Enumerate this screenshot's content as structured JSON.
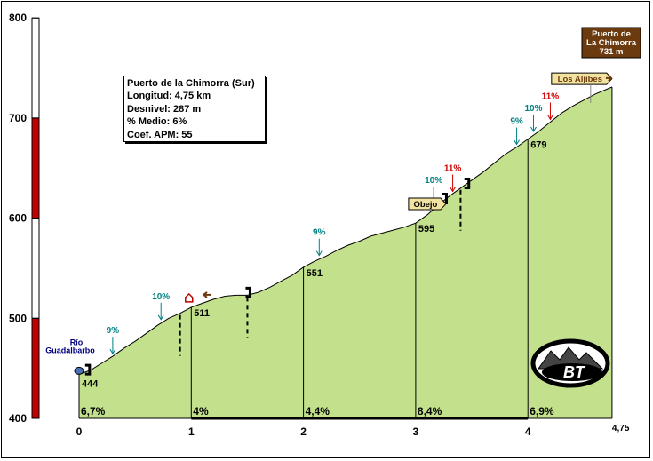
{
  "chart_data": {
    "type": "area",
    "title": "Puerto de la Chimorra (Sur)",
    "ylim": [
      400,
      800
    ],
    "xlim": [
      0,
      4.75
    ],
    "yticks": [
      "400",
      "500",
      "600",
      "700",
      "800"
    ],
    "xticks": [
      "0",
      "1",
      "2",
      "3",
      "4"
    ],
    "x_end_label": "4,75",
    "profile": [
      [
        0,
        444
      ],
      [
        0.1,
        448
      ],
      [
        0.2,
        455
      ],
      [
        0.3,
        462
      ],
      [
        0.4,
        470
      ],
      [
        0.5,
        477
      ],
      [
        0.6,
        485
      ],
      [
        0.7,
        493
      ],
      [
        0.8,
        500
      ],
      [
        0.9,
        505
      ],
      [
        1.0,
        511
      ],
      [
        1.1,
        515
      ],
      [
        1.2,
        519
      ],
      [
        1.3,
        522
      ],
      [
        1.4,
        523
      ],
      [
        1.5,
        523
      ],
      [
        1.6,
        526
      ],
      [
        1.7,
        531
      ],
      [
        1.8,
        537
      ],
      [
        1.9,
        543
      ],
      [
        2.0,
        551
      ],
      [
        2.1,
        557
      ],
      [
        2.2,
        562
      ],
      [
        2.3,
        568
      ],
      [
        2.4,
        573
      ],
      [
        2.5,
        577
      ],
      [
        2.6,
        582
      ],
      [
        2.7,
        585
      ],
      [
        2.8,
        588
      ],
      [
        2.9,
        591
      ],
      [
        3.0,
        595
      ],
      [
        3.1,
        603
      ],
      [
        3.2,
        613
      ],
      [
        3.3,
        622
      ],
      [
        3.4,
        630
      ],
      [
        3.5,
        638
      ],
      [
        3.6,
        646
      ],
      [
        3.7,
        655
      ],
      [
        3.8,
        664
      ],
      [
        3.9,
        671
      ],
      [
        4.0,
        679
      ],
      [
        4.1,
        687
      ],
      [
        4.2,
        696
      ],
      [
        4.3,
        705
      ],
      [
        4.4,
        712
      ],
      [
        4.5,
        718
      ],
      [
        4.6,
        724
      ],
      [
        4.75,
        731
      ]
    ],
    "km_markers": [
      {
        "x": 0,
        "elevation": "444",
        "grade": "6,7%"
      },
      {
        "x": 1,
        "elevation": "511",
        "grade": "4%"
      },
      {
        "x": 2,
        "elevation": "551",
        "grade": "4,4%"
      },
      {
        "x": 3,
        "elevation": "595",
        "grade": "8,4%"
      },
      {
        "x": 4,
        "elevation": "679",
        "grade": "6,9%"
      }
    ],
    "grade_labels": [
      {
        "x": 0.3,
        "elev": 462,
        "text": "9%",
        "color": "#008080"
      },
      {
        "x": 0.73,
        "elev": 496,
        "text": "10%",
        "color": "#008080"
      },
      {
        "x": 2.14,
        "elev": 560,
        "text": "9%",
        "color": "#008080"
      },
      {
        "x": 3.16,
        "elev": 612,
        "text": "10%",
        "color": "#008080"
      },
      {
        "x": 3.33,
        "elev": 624,
        "text": "11%",
        "color": "#cc0000"
      },
      {
        "x": 3.9,
        "elev": 671,
        "text": "9%",
        "color": "#008080"
      },
      {
        "x": 4.05,
        "elev": 684,
        "text": "10%",
        "color": "#008080"
      },
      {
        "x": 4.2,
        "elev": 696,
        "text": "11%",
        "color": "#cc0000"
      }
    ],
    "start_label": [
      "Río",
      "Guadalbarbo"
    ],
    "summit_sign": [
      "Puerto de",
      "La Chimorra",
      "731 m"
    ],
    "waypoint_signs": [
      {
        "x": 3.0,
        "text": "Obejo"
      },
      {
        "x": 4.48,
        "text": "Los Aljibes"
      }
    ],
    "info": {
      "name": "Puerto de la Chimorra (Sur)",
      "length": "Longitud: 4,75 km",
      "gain": "Desnivel: 287 m",
      "avg": "% Medio: 6%",
      "apm": "Coef. APM: 55"
    },
    "logo_text": "BT",
    "colors": {
      "fill": "#c3e18c",
      "axis_red": "#c00000",
      "teal": "#008080",
      "red": "#cc0000",
      "sign_yellow": "#f3e3a0",
      "sign_brown": "#6b3a0f"
    }
  }
}
